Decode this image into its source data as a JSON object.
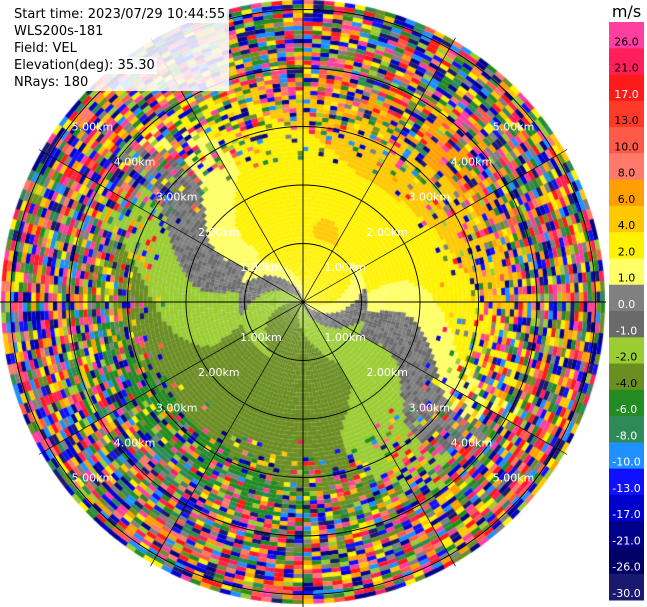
{
  "info": {
    "start_time": "Start time: 2023/07/29 10:44:55",
    "instrument": "WLS200s-181",
    "field": "Field: VEL",
    "elevation": "Elevation(deg): 35.30",
    "nrays": "NRays: 180"
  },
  "range_rings": [
    "1.00km",
    "2.00km",
    "3.00km",
    "4.00km",
    "5.00km"
  ],
  "colorbar": {
    "unit": "m/s",
    "levels": [
      {
        "label": "26.0",
        "color": "#ff3fa0"
      },
      {
        "label": "21.0",
        "color": "#ff1f5a"
      },
      {
        "label": "17.0",
        "color": "#ff1a1a"
      },
      {
        "label": "13.0",
        "color": "#ff3a28"
      },
      {
        "label": "10.0",
        "color": "#ff5a48"
      },
      {
        "label": "8.0",
        "color": "#ff7a6a"
      },
      {
        "label": "6.0",
        "color": "#ffa000"
      },
      {
        "label": "4.0",
        "color": "#ffc800"
      },
      {
        "label": "2.0",
        "color": "#fff200"
      },
      {
        "label": "1.0",
        "color": "#ffff66"
      },
      {
        "label": "0.0",
        "color": "#808080"
      },
      {
        "label": "-1.0",
        "color": "#6a6a6a"
      },
      {
        "label": "-2.0",
        "color": "#9acd32"
      },
      {
        "label": "-4.0",
        "color": "#6b8e23"
      },
      {
        "label": "-6.0",
        "color": "#228b22"
      },
      {
        "label": "-8.0",
        "color": "#2e8b57"
      },
      {
        "label": "-10.0",
        "color": "#1e90ff"
      },
      {
        "label": "-13.0",
        "color": "#1010ff"
      },
      {
        "label": "-17.0",
        "color": "#0000cd"
      },
      {
        "label": "-21.0",
        "color": "#00008b"
      },
      {
        "label": "-26.0",
        "color": "#000066"
      },
      {
        "label": "-30.0",
        "color": "#191970"
      }
    ]
  }
}
